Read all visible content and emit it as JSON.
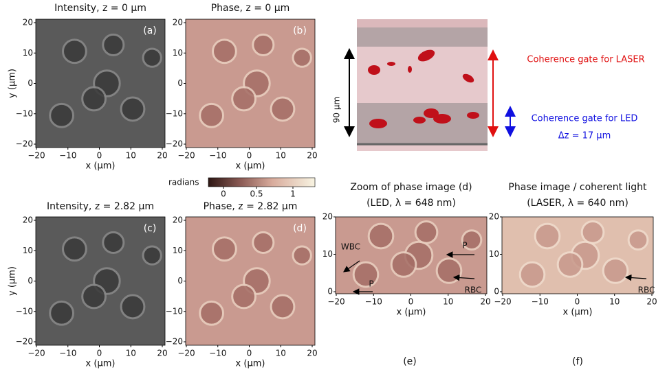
{
  "panels": [
    {
      "title": [
        "Intensity, z = 0 µm"
      ],
      "label": "(a)",
      "x_label": "x (µm)",
      "y_label": "y (µm)",
      "x_ticks": [
        "−20",
        "−10",
        "0",
        "10",
        "20"
      ],
      "y_ticks": [
        "20",
        "10",
        "0",
        "−10",
        "−20"
      ]
    },
    {
      "title": [
        "Phase, z = 0 µm"
      ],
      "label": "(b)",
      "x_label": "x (µm)",
      "x_ticks": [
        "−20",
        "−10",
        "0",
        "10",
        "20"
      ],
      "y_ticks": [
        "20",
        "10",
        "0",
        "−10",
        "−20"
      ]
    },
    {
      "title": [
        "Intensity, z = 2.82 µm"
      ],
      "label": "(c)",
      "x_label": "x (µm)",
      "y_label": "y (µm)",
      "x_ticks": [
        "−20",
        "−10",
        "0",
        "10",
        "20"
      ],
      "y_ticks": [
        "20",
        "10",
        "0",
        "−10",
        "−20"
      ]
    },
    {
      "title": [
        "Phase, z = 2.82 µm"
      ],
      "label": "(d)",
      "x_label": "x (µm)",
      "x_ticks": [
        "−20",
        "−10",
        "0",
        "10",
        "20"
      ],
      "y_ticks": [
        "20",
        "10",
        "0",
        "−10",
        "−20"
      ]
    },
    {
      "title": [
        "Zoom of phase image (d)",
        "(LED, λ = 648 nm)"
      ],
      "label": "(e)",
      "x_label": "x (µm)",
      "x_ticks": [
        "−20",
        "−10",
        "0",
        "10",
        "20"
      ],
      "y_ticks": [
        "20",
        "10",
        "0"
      ],
      "annotations": [
        "WBC",
        "P",
        "P",
        "RBC"
      ]
    },
    {
      "title": [
        "Phase image / coherent light",
        "(LASER, λ = 640 nm)"
      ],
      "label": "(f)",
      "x_label": "x (µm)",
      "x_ticks": [
        "−20",
        "−10",
        "0",
        "10",
        "20"
      ],
      "y_ticks": [
        "20",
        "10",
        "0"
      ],
      "annotations": [
        "RBC"
      ]
    }
  ],
  "colorbar": {
    "label": "radians",
    "ticks": [
      "0",
      "0.5",
      "1"
    ]
  },
  "schematic": {
    "depth_label": "90 µm",
    "laser_label": "Coherence gate for LASER",
    "led_label": "Coherence gate for LED",
    "led_depth": "Δz = 17 µm"
  }
}
